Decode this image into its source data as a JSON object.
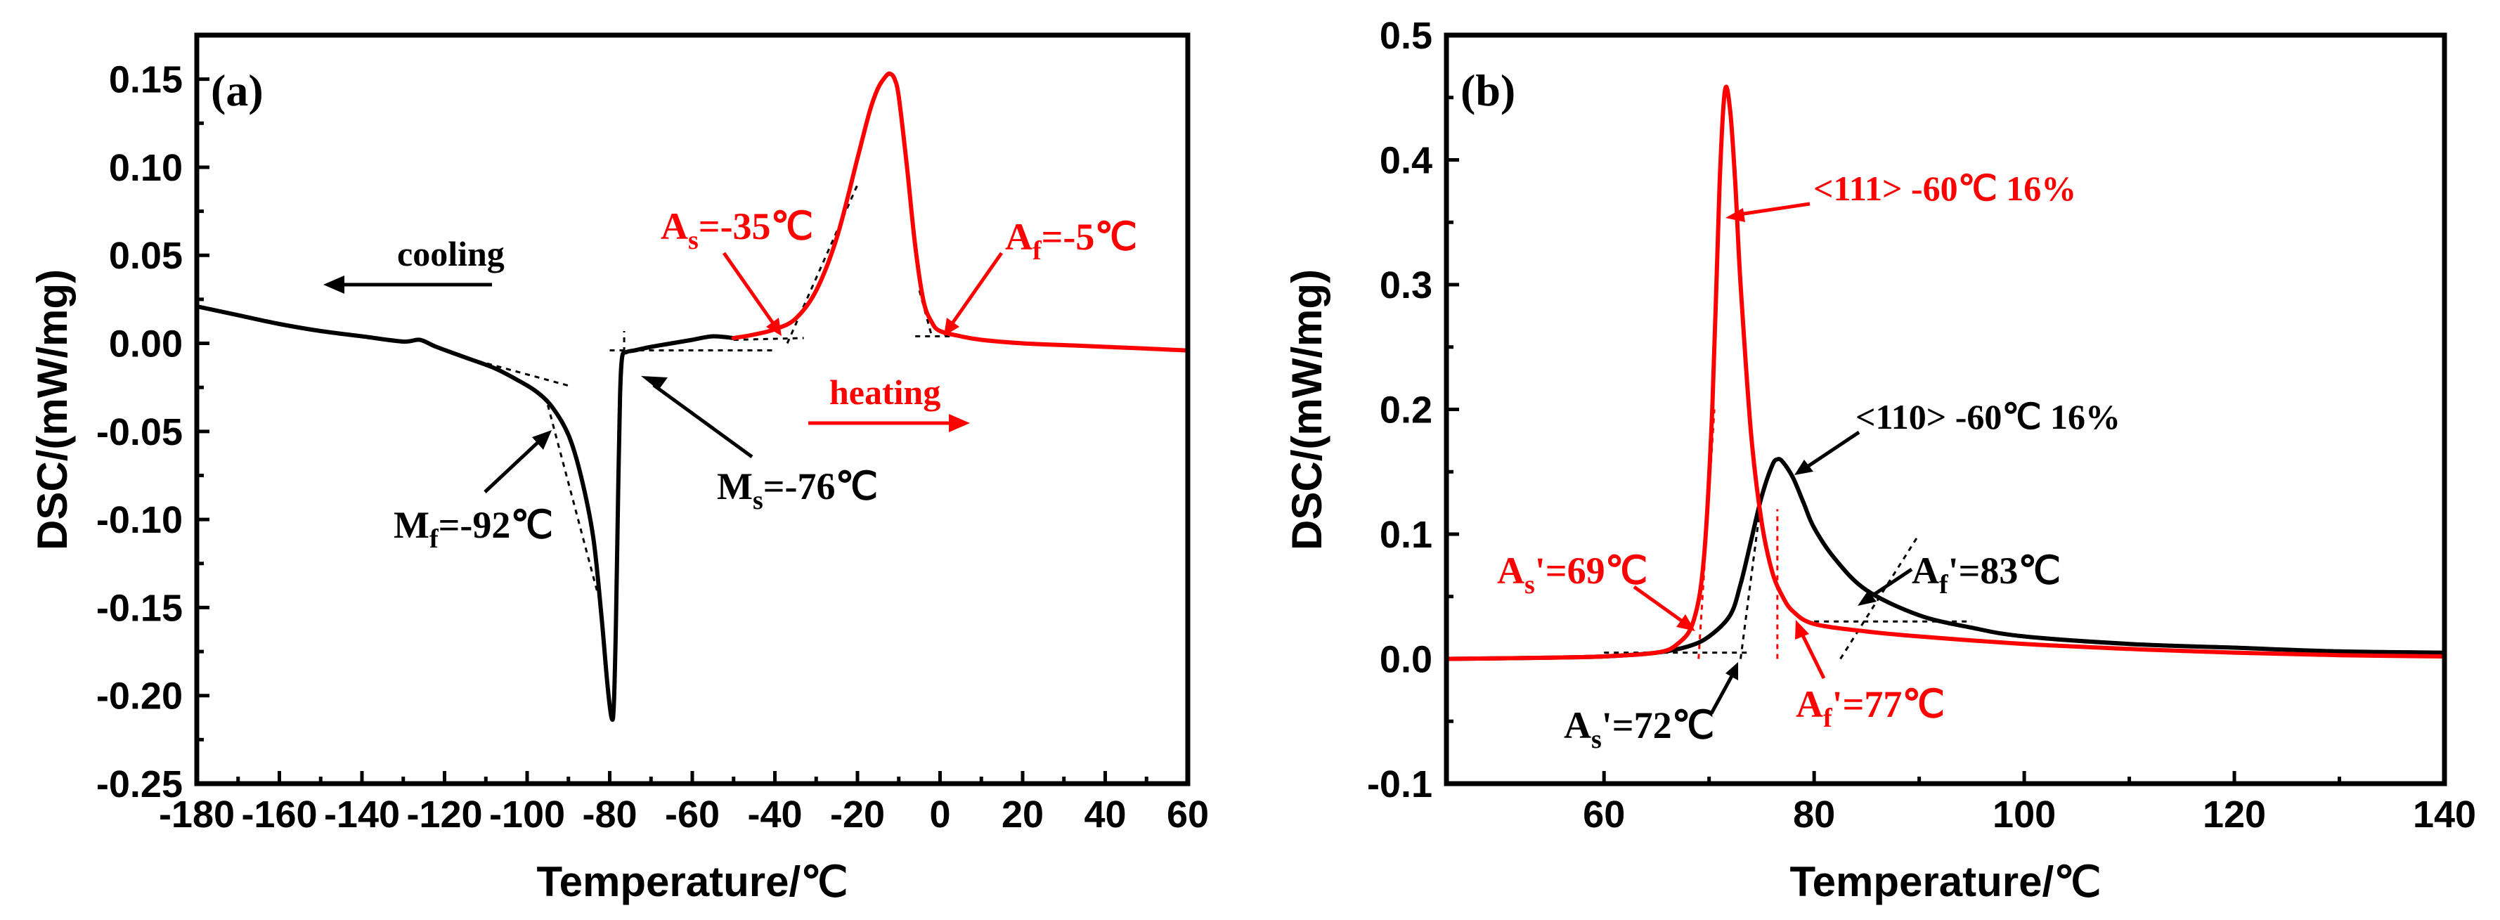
{
  "colors": {
    "heating": "#ff0000",
    "cooling": "#000000",
    "sample110": "#000000",
    "sample111": "#ff0000"
  },
  "chart_data": [
    {
      "type": "line",
      "panel_label": "(a)",
      "xlabel": "Temperature/℃",
      "ylabel": "DSC/(mW/mg)",
      "xlim": [
        -180,
        60
      ],
      "ylim": [
        -0.25,
        0.175
      ],
      "xticks": [
        -180,
        -160,
        -140,
        -120,
        -100,
        -80,
        -60,
        -40,
        -20,
        0,
        20,
        40,
        60
      ],
      "yticks": [
        -0.25,
        -0.2,
        -0.15,
        -0.1,
        -0.05,
        0.0,
        0.05,
        0.1,
        0.15
      ],
      "xtick_labels": [
        "-180",
        "-160",
        "-140",
        "-120",
        "-100",
        "-80",
        "-60",
        "-40",
        "-20",
        "0",
        "20",
        "40",
        "60"
      ],
      "ytick_labels": [
        "-0.25",
        "-0.20",
        "-0.15",
        "-0.10",
        "-0.05",
        "0.00",
        "0.05",
        "0.10",
        "0.15"
      ],
      "series": [
        {
          "name": "cooling",
          "color": "#000000",
          "x": [
            -180,
            -170,
            -160,
            -150,
            -140,
            -130,
            -126,
            -122,
            -115,
            -108,
            -103,
            -98,
            -94,
            -90,
            -87,
            -84,
            -82,
            -80.5,
            -79.5,
            -79,
            -78.5,
            -78,
            -77.5,
            -77,
            -76,
            -74,
            -70,
            -65,
            -60,
            -55,
            -50
          ],
          "y": [
            0.021,
            0.016,
            0.011,
            0.007,
            0.004,
            0.001,
            0.002,
            -0.002,
            -0.008,
            -0.014,
            -0.02,
            -0.027,
            -0.036,
            -0.052,
            -0.075,
            -0.11,
            -0.155,
            -0.195,
            -0.213,
            -0.205,
            -0.16,
            -0.09,
            -0.03,
            -0.008,
            -0.005,
            -0.004,
            -0.002,
            0.0,
            0.002,
            0.004,
            0.003
          ]
        },
        {
          "name": "heating",
          "color": "#ff0000",
          "x": [
            -50,
            -45,
            -40,
            -35,
            -30,
            -25,
            -20,
            -17,
            -15,
            -13,
            -12,
            -11,
            -10,
            -8,
            -6,
            -4,
            -2,
            0,
            5,
            10,
            20,
            30,
            40,
            50,
            60
          ],
          "y": [
            0.003,
            0.005,
            0.008,
            0.014,
            0.03,
            0.06,
            0.105,
            0.132,
            0.145,
            0.152,
            0.153,
            0.15,
            0.14,
            0.1,
            0.055,
            0.024,
            0.012,
            0.007,
            0.004,
            0.002,
            0.0,
            -0.001,
            -0.002,
            -0.003,
            -0.004
          ]
        }
      ],
      "tangents": [
        {
          "color": "#000000",
          "x": [
            -112,
            -90
          ],
          "y": [
            -0.01,
            -0.024
          ]
        },
        {
          "color": "#000000",
          "x": [
            -95,
            -82
          ],
          "y": [
            -0.035,
            -0.15
          ]
        },
        {
          "color": "#000000",
          "x": [
            -76.5,
            -76.5
          ],
          "y": [
            -0.005,
            0.007
          ]
        },
        {
          "color": "#000000",
          "x": [
            -80,
            -40
          ],
          "y": [
            -0.004,
            -0.004
          ]
        },
        {
          "color": "#000000",
          "x": [
            -50,
            -33
          ],
          "y": [
            0.002,
            0.003
          ]
        },
        {
          "color": "#000000",
          "x": [
            -37,
            -20
          ],
          "y": [
            0.0,
            0.09
          ]
        },
        {
          "color": "#000000",
          "x": [
            -5,
            -2
          ],
          "y": [
            0.03,
            0.004
          ]
        },
        {
          "color": "#000000",
          "x": [
            -6,
            5
          ],
          "y": [
            0.004,
            0.004
          ]
        }
      ],
      "annotations": {
        "cooling_label": "cooling",
        "heating_label": "heating",
        "Ms": {
          "main": "M",
          "sub": "s",
          "value": "=-76℃"
        },
        "Mf": {
          "main": "M",
          "sub": "f",
          "value": "=-92℃"
        },
        "As": {
          "main": "A",
          "sub": "s",
          "value": "=-35℃"
        },
        "Af": {
          "main": "A",
          "sub": "f",
          "value": "=-5℃"
        }
      }
    },
    {
      "type": "line",
      "panel_label": "(b)",
      "xlabel": "Temperature/℃",
      "ylabel": "DSC/(mW/mg)",
      "xlim": [
        45,
        140
      ],
      "ylim": [
        -0.1,
        0.5
      ],
      "xticks": [
        60,
        80,
        100,
        120,
        140
      ],
      "yticks": [
        -0.1,
        0.0,
        0.1,
        0.2,
        0.3,
        0.4,
        0.5
      ],
      "xtick_labels": [
        "60",
        "80",
        "100",
        "120",
        "140"
      ],
      "ytick_labels": [
        "-0.1",
        "0.0",
        "0.1",
        "0.2",
        "0.3",
        "0.4",
        "0.5"
      ],
      "series": [
        {
          "name": "<110> -60℃ 16%",
          "color": "#000000",
          "x": [
            45,
            55,
            60,
            65,
            68,
            70,
            72,
            73,
            74,
            75,
            76,
            76.5,
            77,
            78,
            79,
            80,
            82,
            85,
            90,
            95,
            100,
            110,
            120,
            130,
            140
          ],
          "y": [
            0.0,
            0.001,
            0.002,
            0.005,
            0.01,
            0.018,
            0.035,
            0.06,
            0.095,
            0.13,
            0.155,
            0.16,
            0.158,
            0.145,
            0.125,
            0.105,
            0.08,
            0.055,
            0.035,
            0.025,
            0.018,
            0.012,
            0.009,
            0.006,
            0.005
          ]
        },
        {
          "name": "<111> -60℃ 16%",
          "color": "#ff0000",
          "x": [
            45,
            55,
            60,
            65,
            67,
            68.5,
            69.5,
            70.3,
            71,
            71.5,
            72,
            72.5,
            73,
            74,
            75,
            76,
            77,
            78,
            80,
            85,
            90,
            100,
            110,
            120,
            130,
            140
          ],
          "y": [
            0.0,
            0.001,
            0.002,
            0.005,
            0.012,
            0.03,
            0.08,
            0.2,
            0.38,
            0.455,
            0.44,
            0.38,
            0.3,
            0.18,
            0.11,
            0.07,
            0.05,
            0.038,
            0.028,
            0.022,
            0.018,
            0.012,
            0.008,
            0.005,
            0.003,
            0.002
          ]
        }
      ],
      "tangents": [
        {
          "color": "#ff0000",
          "x": [
            69,
            70.5
          ],
          "y": [
            0.0,
            0.2
          ]
        },
        {
          "color": "#ff0000",
          "x": [
            76.5,
            76.5
          ],
          "y": [
            0.0,
            0.12
          ]
        },
        {
          "color": "#000000",
          "x": [
            73,
            75
          ],
          "y": [
            0.0,
            0.13
          ]
        },
        {
          "color": "#000000",
          "x": [
            82.5,
            90
          ],
          "y": [
            0.0,
            0.1
          ]
        },
        {
          "color": "#000000",
          "x": [
            60,
            74
          ],
          "y": [
            0.005,
            0.005
          ]
        },
        {
          "color": "#000000",
          "x": [
            80,
            95
          ],
          "y": [
            0.03,
            0.03
          ]
        }
      ],
      "annotations": {
        "label111": "<111> -60℃ 16%",
        "label110": "<110> -60℃ 16%",
        "As111": {
          "main": "A",
          "sub": "s",
          "value": "'=69℃"
        },
        "Af111": {
          "main": "A",
          "sub": "f",
          "value": "'=77℃"
        },
        "As110": {
          "main": "A",
          "sub": "s",
          "value": "'=72℃"
        },
        "Af110": {
          "main": "A",
          "sub": "f",
          "value": "'=83℃"
        }
      }
    }
  ]
}
